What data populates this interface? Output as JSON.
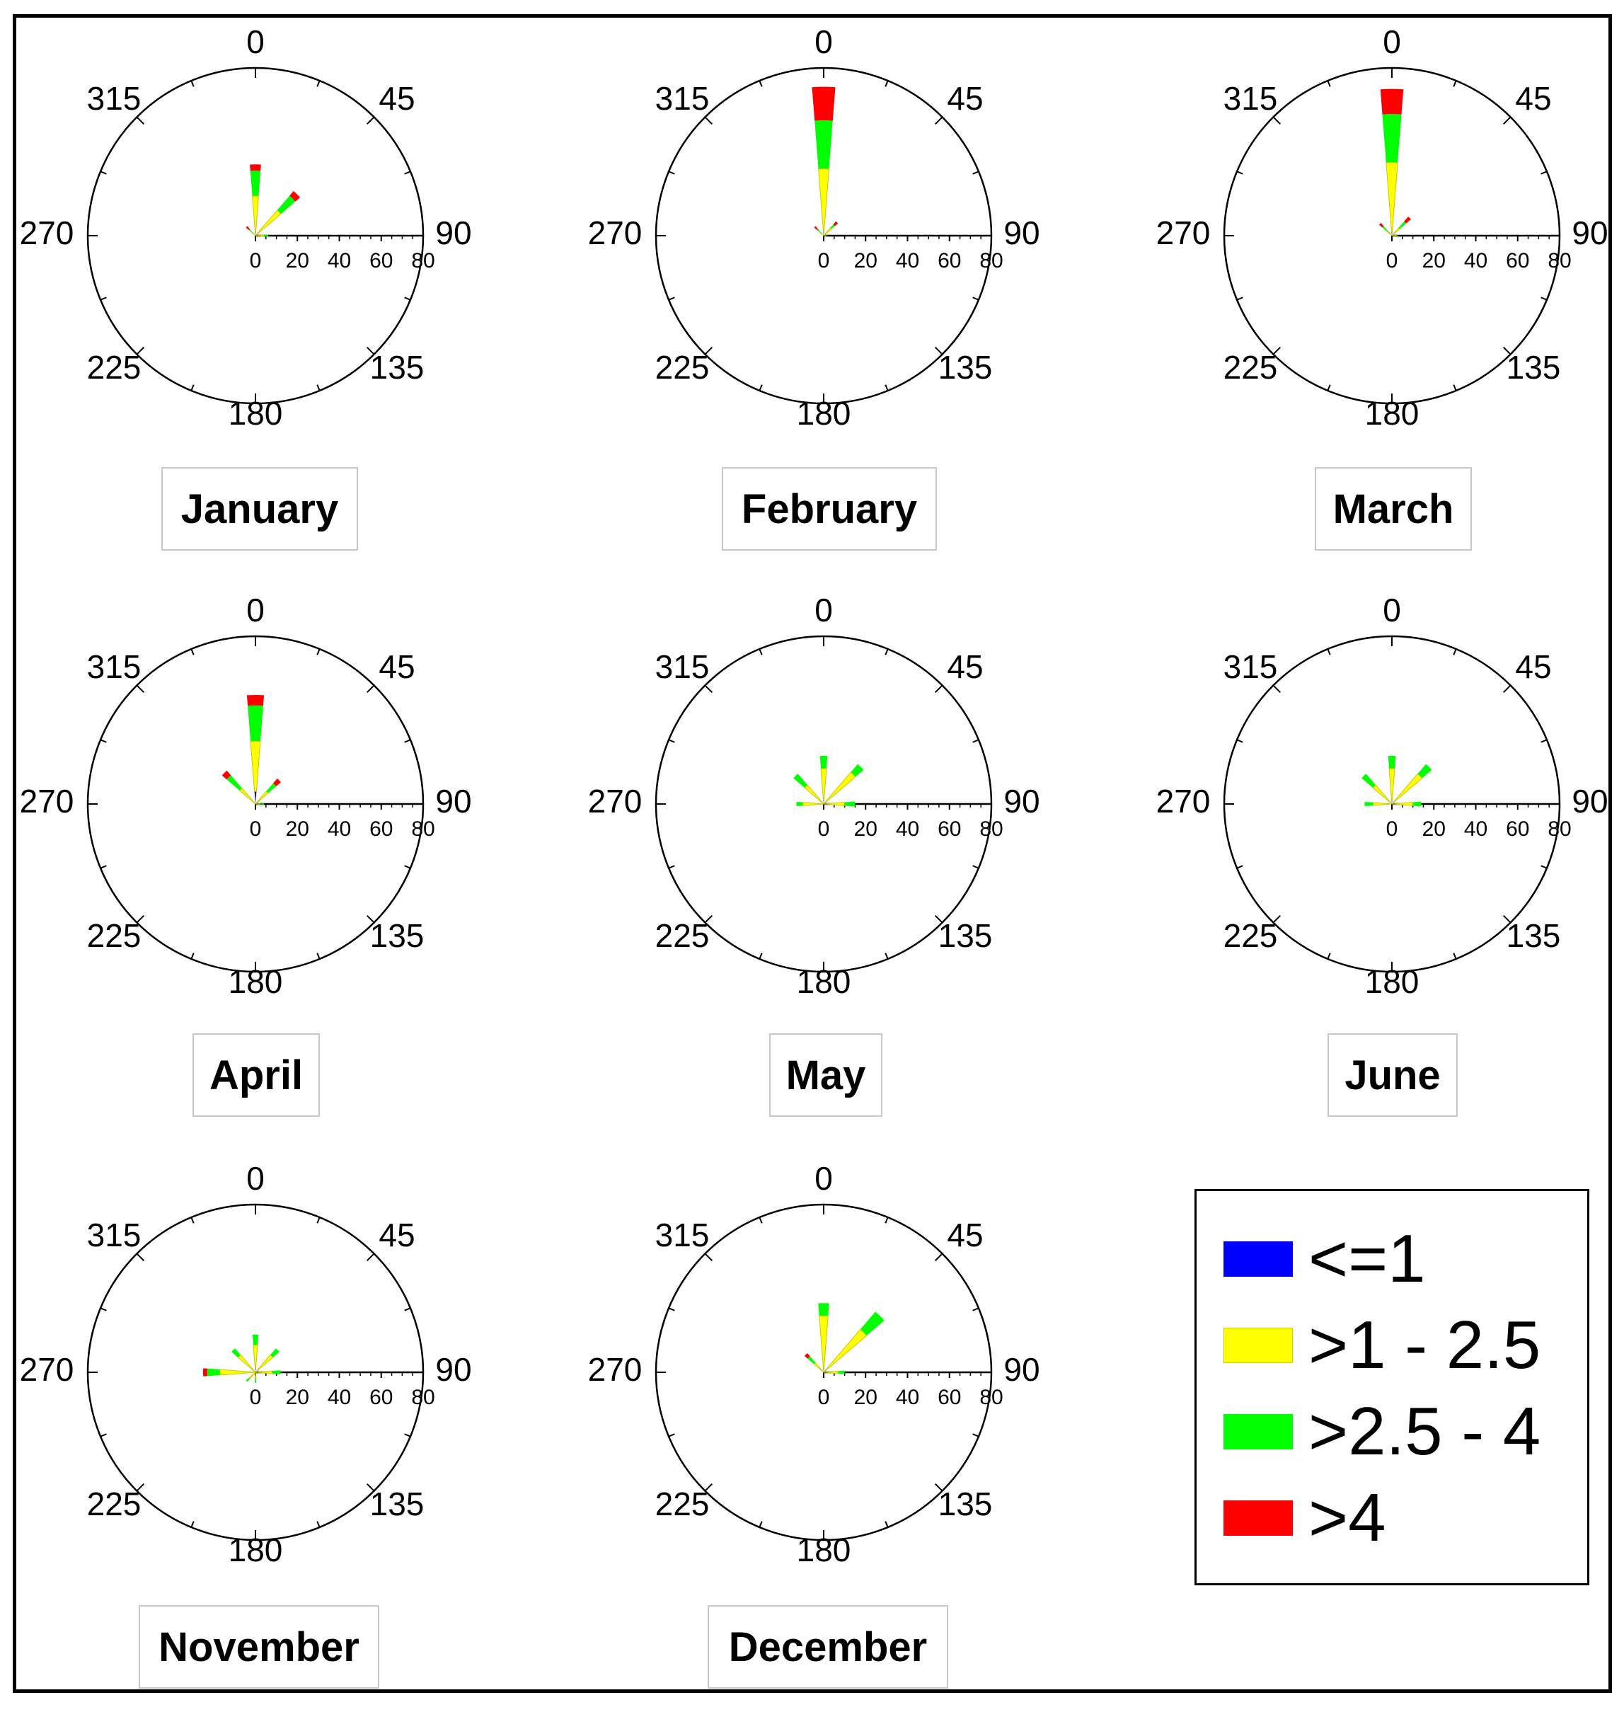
{
  "legend": {
    "items": [
      {
        "label": "<=1",
        "color": "#0000ff"
      },
      {
        "label": ">1 - 2.5",
        "color": "#ffff00"
      },
      {
        "label": ">2.5 - 4",
        "color": "#00ff00"
      },
      {
        "label": ">4",
        "color": "#ff0000"
      }
    ]
  },
  "chart_data": [
    {
      "type": "polar-bar",
      "title": "January",
      "angular_ticks": [
        "0",
        "45",
        "90",
        "135",
        "180",
        "225",
        "270",
        "315"
      ],
      "radial_ticks": [
        "0",
        "20",
        "40",
        "60",
        "80"
      ],
      "rlim": [
        0,
        80
      ],
      "bins": [
        {
          "direction": 0,
          "values": [
            2,
            17,
            12,
            3
          ]
        },
        {
          "direction": 45,
          "values": [
            0,
            16,
            9,
            3
          ]
        },
        {
          "direction": 90,
          "values": [
            0,
            4,
            2,
            0
          ]
        },
        {
          "direction": 315,
          "values": [
            0,
            2,
            2,
            2
          ]
        }
      ]
    },
    {
      "type": "polar-bar",
      "title": "February",
      "angular_ticks": [
        "0",
        "45",
        "90",
        "135",
        "180",
        "225",
        "270",
        "315"
      ],
      "radial_ticks": [
        "0",
        "20",
        "40",
        "60",
        "80"
      ],
      "rlim": [
        0,
        80
      ],
      "bins": [
        {
          "direction": 0,
          "values": [
            2,
            30,
            23,
            16
          ]
        },
        {
          "direction": 45,
          "values": [
            0,
            5,
            2,
            2
          ]
        },
        {
          "direction": 90,
          "values": [
            0,
            1,
            1,
            0
          ]
        },
        {
          "direction": 315,
          "values": [
            0,
            2,
            2,
            2
          ]
        }
      ]
    },
    {
      "type": "polar-bar",
      "title": "March",
      "angular_ticks": [
        "0",
        "45",
        "90",
        "135",
        "180",
        "225",
        "270",
        "315"
      ],
      "radial_ticks": [
        "0",
        "20",
        "40",
        "60",
        "80"
      ],
      "rlim": [
        0,
        80
      ],
      "bins": [
        {
          "direction": 0,
          "values": [
            2,
            33,
            23,
            12
          ]
        },
        {
          "direction": 45,
          "values": [
            0,
            5,
            4,
            3
          ]
        },
        {
          "direction": 90,
          "values": [
            0,
            2,
            1,
            0
          ]
        },
        {
          "direction": 315,
          "values": [
            0,
            3,
            3,
            2
          ]
        }
      ]
    },
    {
      "type": "polar-bar",
      "title": "April",
      "angular_ticks": [
        "0",
        "45",
        "90",
        "135",
        "180",
        "225",
        "270",
        "315"
      ],
      "radial_ticks": [
        "0",
        "20",
        "40",
        "60",
        "80"
      ],
      "rlim": [
        0,
        80
      ],
      "bins": [
        {
          "direction": 0,
          "values": [
            6,
            24,
            17,
            5
          ]
        },
        {
          "direction": 45,
          "values": [
            0,
            8,
            5,
            3
          ]
        },
        {
          "direction": 90,
          "values": [
            0,
            2,
            2,
            0
          ]
        },
        {
          "direction": 315,
          "values": [
            0,
            10,
            8,
            3
          ]
        }
      ]
    },
    {
      "type": "polar-bar",
      "title": "May",
      "angular_ticks": [
        "0",
        "45",
        "90",
        "135",
        "180",
        "225",
        "270",
        "315"
      ],
      "radial_ticks": [
        "0",
        "20",
        "40",
        "60",
        "80"
      ],
      "rlim": [
        0,
        80
      ],
      "bins": [
        {
          "direction": 0,
          "values": [
            2,
            15,
            6,
            0
          ]
        },
        {
          "direction": 45,
          "values": [
            0,
            20,
            5,
            0
          ]
        },
        {
          "direction": 90,
          "values": [
            0,
            10,
            5,
            0
          ]
        },
        {
          "direction": 270,
          "values": [
            0,
            10,
            3,
            0
          ]
        },
        {
          "direction": 315,
          "values": [
            0,
            12,
            7,
            0
          ]
        }
      ]
    },
    {
      "type": "polar-bar",
      "title": "June",
      "angular_ticks": [
        "0",
        "45",
        "90",
        "135",
        "180",
        "225",
        "270",
        "315"
      ],
      "radial_ticks": [
        "0",
        "20",
        "40",
        "60",
        "80"
      ],
      "rlim": [
        0,
        80
      ],
      "bins": [
        {
          "direction": 0,
          "values": [
            2,
            15,
            6,
            0
          ]
        },
        {
          "direction": 45,
          "values": [
            0,
            19,
            6,
            0
          ]
        },
        {
          "direction": 90,
          "values": [
            0,
            10,
            4,
            0
          ]
        },
        {
          "direction": 270,
          "values": [
            0,
            9,
            4,
            0
          ]
        },
        {
          "direction": 315,
          "values": [
            0,
            12,
            7,
            0
          ]
        }
      ]
    },
    {
      "type": "polar-bar",
      "title": "November",
      "angular_ticks": [
        "0",
        "45",
        "90",
        "135",
        "180",
        "225",
        "270",
        "315"
      ],
      "radial_ticks": [
        "0",
        "20",
        "40",
        "60",
        "80"
      ],
      "rlim": [
        0,
        80
      ],
      "bins": [
        {
          "direction": 0,
          "values": [
            2,
            11,
            5,
            0
          ]
        },
        {
          "direction": 45,
          "values": [
            0,
            11,
            4,
            0
          ]
        },
        {
          "direction": 90,
          "values": [
            0,
            8,
            4,
            0
          ]
        },
        {
          "direction": 180,
          "values": [
            0,
            3,
            2,
            0
          ]
        },
        {
          "direction": 225,
          "values": [
            0,
            4,
            2,
            0
          ]
        },
        {
          "direction": 270,
          "values": [
            0,
            17,
            6,
            2
          ]
        },
        {
          "direction": 315,
          "values": [
            0,
            11,
            4,
            0
          ]
        }
      ]
    },
    {
      "type": "polar-bar",
      "title": "December",
      "angular_ticks": [
        "0",
        "45",
        "90",
        "135",
        "180",
        "225",
        "270",
        "315"
      ],
      "radial_ticks": [
        "0",
        "20",
        "40",
        "60",
        "80"
      ],
      "rlim": [
        0,
        80
      ],
      "bins": [
        {
          "direction": 0,
          "values": [
            2,
            25,
            6,
            0
          ]
        },
        {
          "direction": 45,
          "values": [
            0,
            27,
            11,
            0
          ]
        },
        {
          "direction": 90,
          "values": [
            0,
            7,
            3,
            0
          ]
        },
        {
          "direction": 315,
          "values": [
            0,
            6,
            4,
            2
          ]
        }
      ]
    }
  ]
}
